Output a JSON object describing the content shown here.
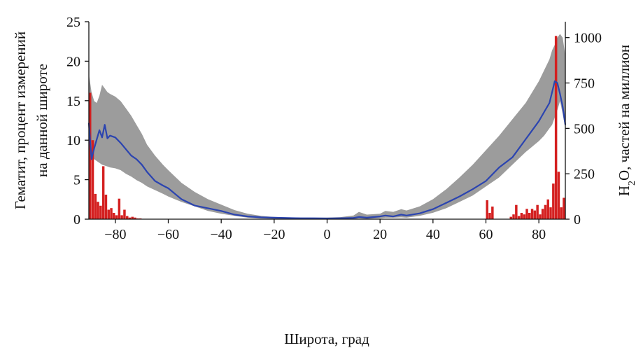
{
  "chart_data": {
    "type": "bar",
    "xlabel": "Широта, град",
    "ylabel_left_line1": "Гематит, процент измерений",
    "ylabel_left_line2": "на данной широте",
    "ylabel_right_prefix": "H",
    "ylabel_right_sub": "2",
    "ylabel_right_suffix": "O, частей на миллион",
    "xlim": [
      -90,
      90
    ],
    "ylim_left": [
      0,
      25
    ],
    "ylim_right": [
      0,
      1087.5
    ],
    "x_ticks": [
      -80,
      -60,
      -40,
      -20,
      0,
      20,
      40,
      60,
      80
    ],
    "y_left_ticks": [
      0,
      5,
      10,
      15,
      20,
      25
    ],
    "y_right_ticks": [
      0,
      250,
      500,
      750,
      1000
    ],
    "colors": {
      "hematite_bars": "#d42020",
      "water_band": "#9c9c9c",
      "water_mean": "#2b44b0",
      "axis": "#111111"
    },
    "series": [
      {
        "axis": "left",
        "kind": "bars",
        "x": [
          -89.5,
          -88.5,
          -87.5,
          -86.5,
          -85.5,
          -84.5,
          -83.5,
          -82.5,
          -81.5,
          -80.5,
          -79.5,
          -78.5,
          -77.5,
          -76.5,
          -75.5,
          -74.5,
          -73.5,
          -72.5,
          -71.5,
          -70.5,
          60.5,
          61.5,
          62.5,
          69.5,
          70.5,
          71.5,
          72.5,
          73.5,
          74.5,
          75.5,
          76.5,
          77.5,
          78.5,
          79.5,
          80.5,
          81.5,
          82.5,
          83.5,
          84.5,
          85.5,
          86.5,
          87.5,
          88.5,
          89.5
        ],
        "values": [
          16,
          10,
          3.2,
          2.2,
          1.7,
          6.7,
          3.1,
          1.2,
          1.4,
          0.8,
          0.5,
          2.6,
          0.5,
          1.2,
          0.4,
          0.2,
          0.3,
          0.2,
          0.1,
          0.1,
          2.4,
          0.8,
          1.6,
          0.3,
          0.6,
          1.8,
          0.4,
          0.8,
          0.6,
          1.3,
          0.8,
          1.3,
          1.1,
          1.8,
          0.6,
          1.3,
          1.8,
          2.5,
          1.5,
          4.5,
          23.2,
          6,
          1.5,
          2.7
        ]
      },
      {
        "axis": "right",
        "kind": "band",
        "x": [
          -90,
          -89,
          -88,
          -87,
          -86,
          -85,
          -84,
          -83,
          -82,
          -80,
          -78,
          -76,
          -74,
          -72,
          -70,
          -68,
          -65,
          -62,
          -60,
          -55,
          -50,
          -45,
          -40,
          -35,
          -30,
          -25,
          -20,
          -15,
          -10,
          -5,
          0,
          5,
          10,
          12,
          15,
          20,
          22,
          25,
          28,
          30,
          35,
          40,
          45,
          50,
          55,
          60,
          65,
          70,
          75,
          80,
          82,
          84,
          85,
          86,
          87,
          88,
          89,
          90
        ],
        "lower": [
          340,
          340,
          330,
          320,
          310,
          300,
          295,
          290,
          285,
          280,
          270,
          250,
          235,
          215,
          200,
          180,
          160,
          140,
          125,
          95,
          70,
          45,
          30,
          18,
          8,
          4,
          2,
          1,
          0,
          0,
          0,
          0,
          1,
          4,
          2,
          5,
          8,
          8,
          10,
          8,
          18,
          35,
          60,
          95,
          130,
          180,
          230,
          300,
          370,
          430,
          460,
          500,
          520,
          560,
          600,
          650,
          580,
          500
        ],
        "upper": [
          800,
          700,
          650,
          640,
          680,
          740,
          720,
          700,
          690,
          675,
          650,
          610,
          570,
          520,
          470,
          410,
          350,
          300,
          270,
          200,
          150,
          110,
          80,
          50,
          30,
          18,
          12,
          10,
          9,
          8,
          9,
          11,
          20,
          40,
          25,
          30,
          45,
          40,
          55,
          48,
          70,
          110,
          165,
          230,
          300,
          380,
          460,
          550,
          640,
          760,
          820,
          880,
          930,
          960,
          1000,
          1020,
          1000,
          900
        ]
      },
      {
        "axis": "right",
        "kind": "line",
        "x": [
          -90,
          -89,
          -88,
          -87,
          -86,
          -85,
          -84,
          -83,
          -82,
          -80,
          -78,
          -76,
          -74,
          -72,
          -70,
          -68,
          -65,
          -62,
          -60,
          -55,
          -50,
          -45,
          -40,
          -35,
          -30,
          -25,
          -20,
          -15,
          -10,
          -5,
          0,
          5,
          10,
          12,
          15,
          20,
          22,
          25,
          28,
          30,
          35,
          40,
          45,
          50,
          55,
          60,
          65,
          70,
          75,
          80,
          82,
          84,
          85,
          86,
          87,
          88,
          89,
          90
        ],
        "values": [
          530,
          330,
          390,
          440,
          490,
          450,
          520,
          445,
          460,
          450,
          420,
          385,
          350,
          330,
          300,
          260,
          210,
          185,
          170,
          110,
          75,
          60,
          45,
          25,
          15,
          10,
          8,
          6,
          5,
          5,
          4,
          5,
          7,
          12,
          8,
          15,
          20,
          15,
          25,
          20,
          32,
          55,
          90,
          125,
          165,
          210,
          285,
          340,
          440,
          540,
          590,
          640,
          700,
          760,
          750,
          690,
          620,
          520
        ]
      }
    ]
  }
}
